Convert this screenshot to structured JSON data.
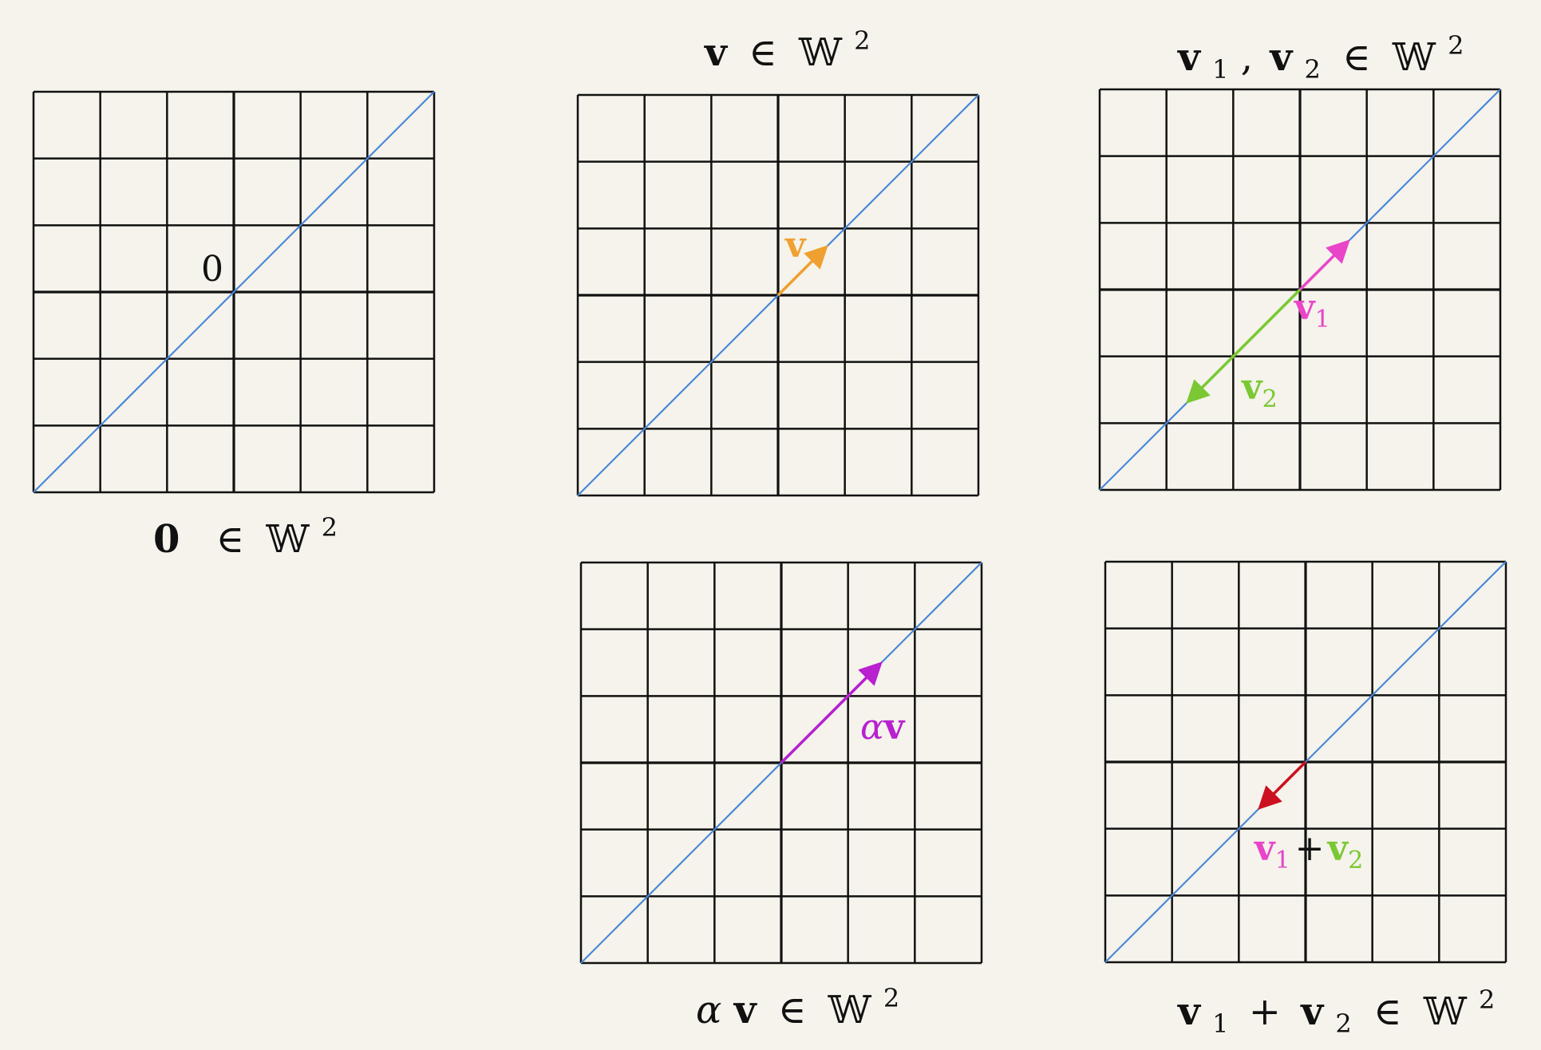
{
  "palette": {
    "background": "#f5f3eb",
    "grid": "#111111",
    "subspace_line": "#4a88d8",
    "v": "#f0a030",
    "v1": "#e845c8",
    "v2": "#7ac833",
    "alpha_v": "#b820d0",
    "v1_plus_v2": "#cc1020"
  },
  "panels": {
    "zero": {
      "origin_label": "0",
      "caption": {
        "symbol": "0",
        "member": "∈",
        "space": "𝕎",
        "exp": "2"
      }
    },
    "v": {
      "vector_label": "v",
      "caption": {
        "symbol": "v",
        "member": "∈",
        "space": "𝕎",
        "exp": "2"
      }
    },
    "v1v2": {
      "v1_label": {
        "base": "v",
        "sub": "1"
      },
      "v2_label": {
        "base": "v",
        "sub": "2"
      },
      "caption": {
        "v": "v",
        "s1": "1",
        "comma": ",",
        "s2": "2",
        "member": "∈",
        "space": "𝕎",
        "exp": "2"
      }
    },
    "alpha_v": {
      "vector_label": {
        "alpha": "α",
        "v": "v"
      },
      "caption": {
        "alpha": "α",
        "v": "v",
        "member": "∈",
        "space": "𝕎",
        "exp": "2"
      }
    },
    "sum": {
      "vector_label": {
        "v": "v",
        "s1": "1",
        "plus": "+",
        "s2": "2"
      },
      "caption": {
        "v": "v",
        "s1": "1",
        "plus": "+",
        "s2": "2",
        "member": "∈",
        "space": "𝕎",
        "exp": "2"
      }
    }
  }
}
